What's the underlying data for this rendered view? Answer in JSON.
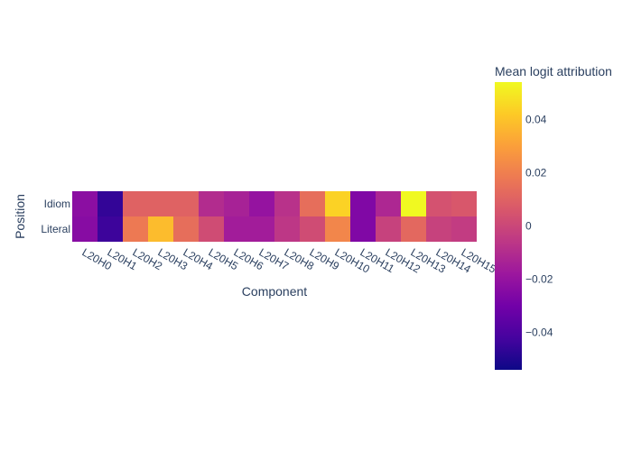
{
  "chart_data": {
    "type": "heatmap",
    "xlabel": "Component",
    "ylabel": "Position",
    "x_categories": [
      "L20H0",
      "L20H1",
      "L20H2",
      "L20H3",
      "L20H4",
      "L20H5",
      "L20H6",
      "L20H7",
      "L20H8",
      "L20H9",
      "L20H10",
      "L20H11",
      "L20H12",
      "L20H13",
      "L20H14",
      "L20H15"
    ],
    "y_categories": [
      "Idiom",
      "Literal"
    ],
    "values": [
      [
        -0.023,
        -0.046,
        0.01,
        0.01,
        0.01,
        -0.01,
        -0.014,
        -0.02,
        -0.008,
        0.014,
        0.044,
        -0.026,
        -0.012,
        0.054,
        0.004,
        0.006
      ],
      [
        -0.024,
        -0.044,
        0.018,
        0.038,
        0.014,
        0.002,
        -0.016,
        -0.016,
        -0.006,
        0.002,
        0.022,
        -0.026,
        -0.002,
        0.012,
        -0.002,
        -0.004
      ]
    ],
    "colorbar": {
      "title": "Mean logit attribution",
      "zmin": -0.054,
      "zmax": 0.054,
      "ticks": [
        0.04,
        0.02,
        0,
        -0.02,
        -0.04
      ],
      "tick_labels": [
        "0.04",
        "0.02",
        "0",
        "−0.02",
        "−0.04"
      ],
      "colorscale": [
        "#0d0887",
        "#46039f",
        "#7201a8",
        "#9c179e",
        "#bd3786",
        "#d8576b",
        "#ed7953",
        "#fb9f3a",
        "#fdca26",
        "#f0f921"
      ]
    }
  }
}
